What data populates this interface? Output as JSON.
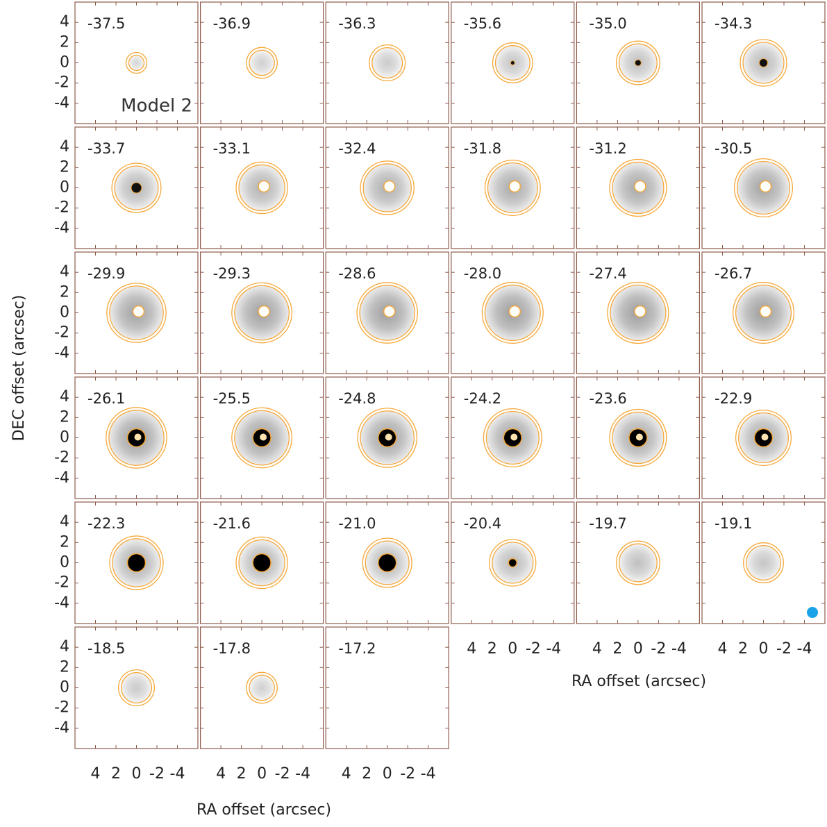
{
  "chart_data": {
    "type": "channel_map",
    "panels": [
      "-37.5",
      "-36.9",
      "-36.3",
      "-35.6",
      "-35.0",
      "-34.3",
      "-33.7",
      "-33.1",
      "-32.4",
      "-31.8",
      "-31.2",
      "-30.5",
      "-29.9",
      "-29.3",
      "-28.6",
      "-28.0",
      "-27.4",
      "-26.7",
      "-26.1",
      "-25.5",
      "-24.8",
      "-24.2",
      "-23.6",
      "-22.9",
      "-22.3",
      "-21.6",
      "-21.0",
      "-20.4",
      "-19.7",
      "-19.1",
      "-18.5",
      "-17.8",
      "-17.2"
    ],
    "annotation": "Model 2",
    "xlabel": "RA offset (arcsec)",
    "ylabel": "DEC offset (arcsec)",
    "xlim": [
      6,
      -6
    ],
    "ylim": [
      -6,
      6
    ],
    "xticks": [
      4,
      2,
      0,
      -2,
      -4
    ],
    "yticks": [
      4,
      2,
      0,
      -2,
      -4
    ],
    "contour_color": "#f5a83a"
  }
}
